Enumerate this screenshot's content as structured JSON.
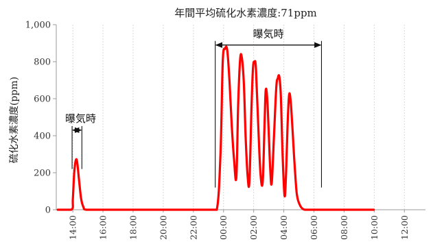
{
  "chart_data": {
    "type": "line",
    "title": "年間平均硫化水素濃度:71ppm",
    "xlabel": "",
    "ylabel": "硫化水素濃度(ppm)",
    "ylim": [
      0,
      1000
    ],
    "yticks": [
      0,
      200,
      400,
      600,
      800,
      1000
    ],
    "ytick_labels": [
      "0",
      "200",
      "400",
      "600",
      "800",
      "1,000"
    ],
    "xlim_hours": [
      12.9,
      37.4
    ],
    "xticks_hours": [
      14,
      16,
      18,
      20,
      22,
      24,
      26,
      28,
      30,
      32,
      34,
      36
    ],
    "xtick_labels": [
      "14:00",
      "16:00",
      "18:00",
      "20:00",
      "22:00",
      "00:00",
      "02:00",
      "04:00",
      "06:00",
      "08:00",
      "10:00",
      "12:00"
    ],
    "grid": {
      "x": true,
      "y": false
    },
    "series": [
      {
        "color": "#ff0000",
        "x_hours": [
          13.0,
          13.9,
          14.0,
          14.1,
          14.25,
          14.4,
          14.55,
          14.7,
          14.9,
          16.0,
          18.0,
          20.0,
          22.0,
          23.0,
          23.55,
          23.8,
          23.95,
          24.1,
          24.25,
          24.4,
          24.55,
          24.7,
          24.85,
          24.97,
          25.1,
          25.22,
          25.35,
          25.47,
          25.6,
          25.72,
          25.85,
          25.95,
          26.05,
          26.15,
          26.3,
          26.45,
          26.6,
          26.72,
          26.8,
          26.9,
          27.0,
          27.1,
          27.2,
          27.35,
          27.5,
          27.6,
          27.7,
          27.8,
          27.92,
          28.05,
          28.15,
          28.25,
          28.35,
          28.45,
          28.55,
          28.65,
          28.75,
          28.85,
          28.95,
          29.1,
          29.25,
          29.4,
          29.6,
          29.75,
          29.95,
          30.2,
          30.6,
          31.0,
          31.5,
          32.0,
          32.5,
          33.0,
          33.5,
          33.97
        ],
        "y": [
          0,
          0,
          60,
          210,
          272,
          170,
          60,
          15,
          0,
          0,
          0,
          0,
          0,
          0,
          0,
          310,
          800,
          870,
          860,
          690,
          450,
          270,
          175,
          560,
          810,
          820,
          680,
          390,
          180,
          155,
          540,
          760,
          800,
          760,
          460,
          200,
          150,
          460,
          645,
          600,
          420,
          220,
          145,
          400,
          660,
          710,
          720,
          620,
          300,
          75,
          200,
          460,
          620,
          590,
          470,
          330,
          200,
          95,
          50,
          20,
          5,
          0,
          0,
          0,
          0,
          0,
          0,
          0,
          0,
          0,
          0,
          0,
          0,
          0
        ]
      }
    ],
    "annotations": [
      {
        "label": "曝気時",
        "x_start_hours": 23.45,
        "x_end_hours": 30.5,
        "y": 890
      },
      {
        "label": "曝気時",
        "x_start_hours": 13.95,
        "x_end_hours": 14.6,
        "y": 430
      }
    ]
  }
}
